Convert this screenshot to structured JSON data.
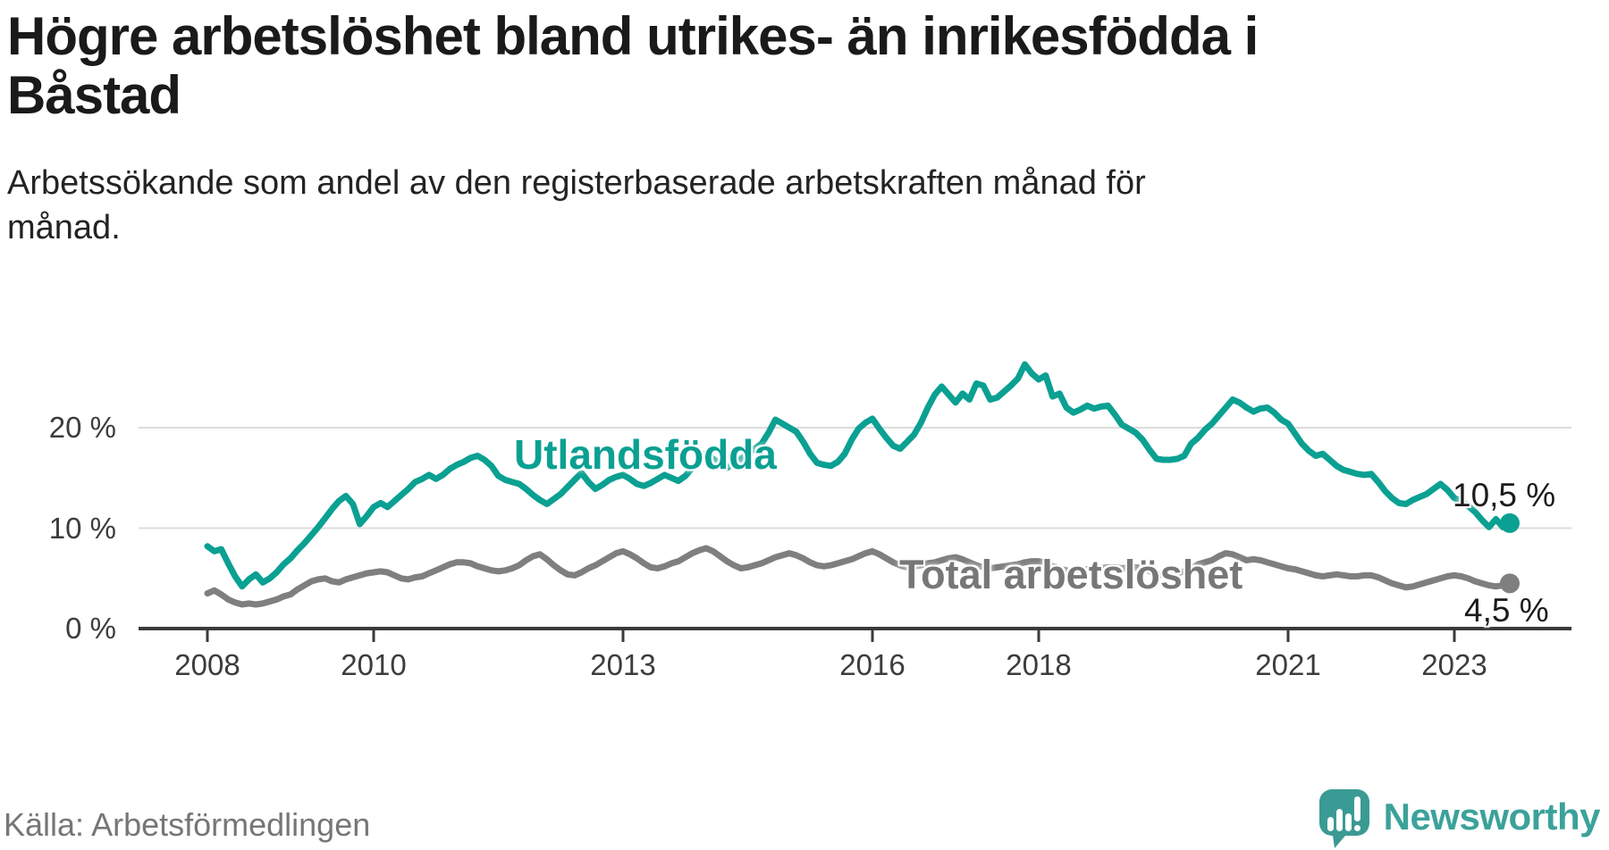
{
  "header": {
    "title": "Högre arbetslöshet bland utrikes- än inrikesfödda i Båstad",
    "title_lines": [
      "Högre arbetslöshet bland utrikes- än inrikesfödda i",
      "Båstad"
    ],
    "subtitle": "Arbetssökande som andel av den registerbaserade arbetskraften månad för månad.",
    "subtitle_lines": [
      "Arbetssökande som andel av den registerbaserade arbetskraften månad för",
      "månad."
    ]
  },
  "footer": {
    "source": "Källa: Arbetsförmedlingen",
    "brand": "Newsworthy",
    "brand_icon": "newsworthy-speech-bubble-bar-chart-icon",
    "brand_color": "#3ba29a"
  },
  "chart_data": {
    "type": "line",
    "unit": "%",
    "frequency": "monthly",
    "x_start": "2008-01",
    "x_end": "2023-09",
    "grid": "horizontal",
    "ylim": [
      0,
      28
    ],
    "y_ticks": [
      {
        "label": "0 %",
        "value": 0
      },
      {
        "label": "10 %",
        "value": 10
      },
      {
        "label": "20 %",
        "value": 20
      }
    ],
    "x_ticks": [
      {
        "label": "2008",
        "year": 2008
      },
      {
        "label": "2010",
        "year": 2010
      },
      {
        "label": "2013",
        "year": 2013
      },
      {
        "label": "2016",
        "year": 2016
      },
      {
        "label": "2018",
        "year": 2018
      },
      {
        "label": "2021",
        "year": 2021
      },
      {
        "label": "2023",
        "year": 2023
      }
    ],
    "series": [
      {
        "name": "Utlandsfödda",
        "color": "#0aa092",
        "end_label": "10,5 %",
        "end_value": 10.5,
        "values": [
          8.2,
          7.7,
          7.9,
          6.5,
          5.2,
          4.2,
          4.9,
          5.4,
          4.6,
          5.0,
          5.6,
          6.4,
          7.0,
          7.8,
          8.5,
          9.3,
          10.1,
          11.0,
          11.9,
          12.7,
          13.2,
          12.4,
          10.4,
          11.2,
          12.1,
          12.5,
          12.1,
          12.7,
          13.3,
          13.9,
          14.6,
          14.9,
          15.3,
          14.9,
          15.3,
          15.9,
          16.3,
          16.6,
          17.0,
          17.2,
          16.8,
          16.2,
          15.2,
          14.8,
          14.6,
          14.4,
          13.9,
          13.3,
          12.8,
          12.4,
          12.9,
          13.4,
          14.1,
          14.8,
          15.5,
          14.6,
          13.9,
          14.3,
          14.8,
          15.1,
          15.3,
          14.9,
          14.4,
          14.2,
          14.5,
          14.9,
          15.3,
          15.0,
          14.7,
          15.2,
          16.0,
          16.8,
          17.5,
          16.9,
          16.3,
          16.0,
          16.4,
          16.9,
          17.4,
          17.9,
          18.4,
          19.5,
          20.8,
          20.4,
          20.0,
          19.6,
          18.6,
          17.4,
          16.5,
          16.3,
          16.2,
          16.6,
          17.4,
          18.8,
          19.9,
          20.5,
          20.9,
          19.9,
          19.0,
          18.2,
          17.9,
          18.6,
          19.3,
          20.5,
          22.0,
          23.3,
          24.1,
          23.3,
          22.5,
          23.4,
          22.8,
          24.4,
          24.2,
          22.8,
          23.0,
          23.6,
          24.2,
          24.9,
          26.3,
          25.4,
          24.8,
          25.2,
          23.1,
          23.4,
          22.0,
          21.5,
          21.8,
          22.2,
          21.9,
          22.1,
          22.2,
          21.3,
          20.3,
          19.9,
          19.5,
          18.8,
          17.8,
          16.9,
          16.8,
          16.8,
          16.9,
          17.2,
          18.4,
          19.0,
          19.8,
          20.4,
          21.2,
          22.0,
          22.8,
          22.5,
          22.0,
          21.6,
          21.9,
          22.0,
          21.5,
          20.8,
          20.4,
          19.4,
          18.4,
          17.7,
          17.2,
          17.4,
          16.8,
          16.2,
          15.8,
          15.6,
          15.4,
          15.3,
          15.4,
          14.6,
          13.7,
          13.0,
          12.5,
          12.4,
          12.8,
          13.1,
          13.4,
          13.9,
          14.4,
          13.8,
          13.0,
          12.7,
          12.2,
          11.6,
          10.8,
          10.1,
          10.9,
          10.1,
          10.5
        ]
      },
      {
        "name": "Total arbetslöshet",
        "color": "#7f7f7f",
        "end_label": "4,5 %",
        "end_value": 4.5,
        "values": [
          3.5,
          3.8,
          3.4,
          2.9,
          2.6,
          2.4,
          2.5,
          2.4,
          2.5,
          2.7,
          2.9,
          3.2,
          3.4,
          3.9,
          4.3,
          4.7,
          4.9,
          5.0,
          4.7,
          4.6,
          4.9,
          5.1,
          5.3,
          5.5,
          5.6,
          5.7,
          5.6,
          5.3,
          5.0,
          4.9,
          5.1,
          5.2,
          5.5,
          5.8,
          6.1,
          6.4,
          6.6,
          6.6,
          6.5,
          6.2,
          6.0,
          5.8,
          5.7,
          5.8,
          6.0,
          6.3,
          6.8,
          7.2,
          7.4,
          6.9,
          6.3,
          5.8,
          5.4,
          5.3,
          5.6,
          6.0,
          6.3,
          6.7,
          7.1,
          7.5,
          7.7,
          7.4,
          7.0,
          6.5,
          6.1,
          6.0,
          6.2,
          6.5,
          6.7,
          7.1,
          7.5,
          7.8,
          8.0,
          7.7,
          7.2,
          6.7,
          6.3,
          6.0,
          6.1,
          6.3,
          6.5,
          6.8,
          7.1,
          7.3,
          7.5,
          7.3,
          7.0,
          6.6,
          6.3,
          6.2,
          6.3,
          6.5,
          6.7,
          6.9,
          7.2,
          7.5,
          7.7,
          7.4,
          7.0,
          6.6,
          6.3,
          6.1,
          6.2,
          6.3,
          6.5,
          6.6,
          6.8,
          7.0,
          7.1,
          6.9,
          6.6,
          6.3,
          6.1,
          6.0,
          6.1,
          6.2,
          6.3,
          6.4,
          6.6,
          6.7,
          6.7,
          6.5,
          6.2,
          6.0,
          5.8,
          5.7,
          5.8,
          5.9,
          6.0,
          6.0,
          6.1,
          6.1,
          6.0,
          6.1,
          6.1,
          6.0,
          5.7,
          5.4,
          5.3,
          5.4,
          5.5,
          5.7,
          6.0,
          6.4,
          6.6,
          6.8,
          7.2,
          7.5,
          7.4,
          7.1,
          6.8,
          6.9,
          6.8,
          6.6,
          6.4,
          6.2,
          6.0,
          5.9,
          5.7,
          5.5,
          5.3,
          5.2,
          5.3,
          5.4,
          5.3,
          5.2,
          5.2,
          5.3,
          5.3,
          5.1,
          4.8,
          4.5,
          4.3,
          4.1,
          4.2,
          4.4,
          4.6,
          4.8,
          5.0,
          5.2,
          5.3,
          5.2,
          5.0,
          4.7,
          4.5,
          4.3,
          4.2,
          4.3,
          4.5
        ]
      }
    ]
  }
}
